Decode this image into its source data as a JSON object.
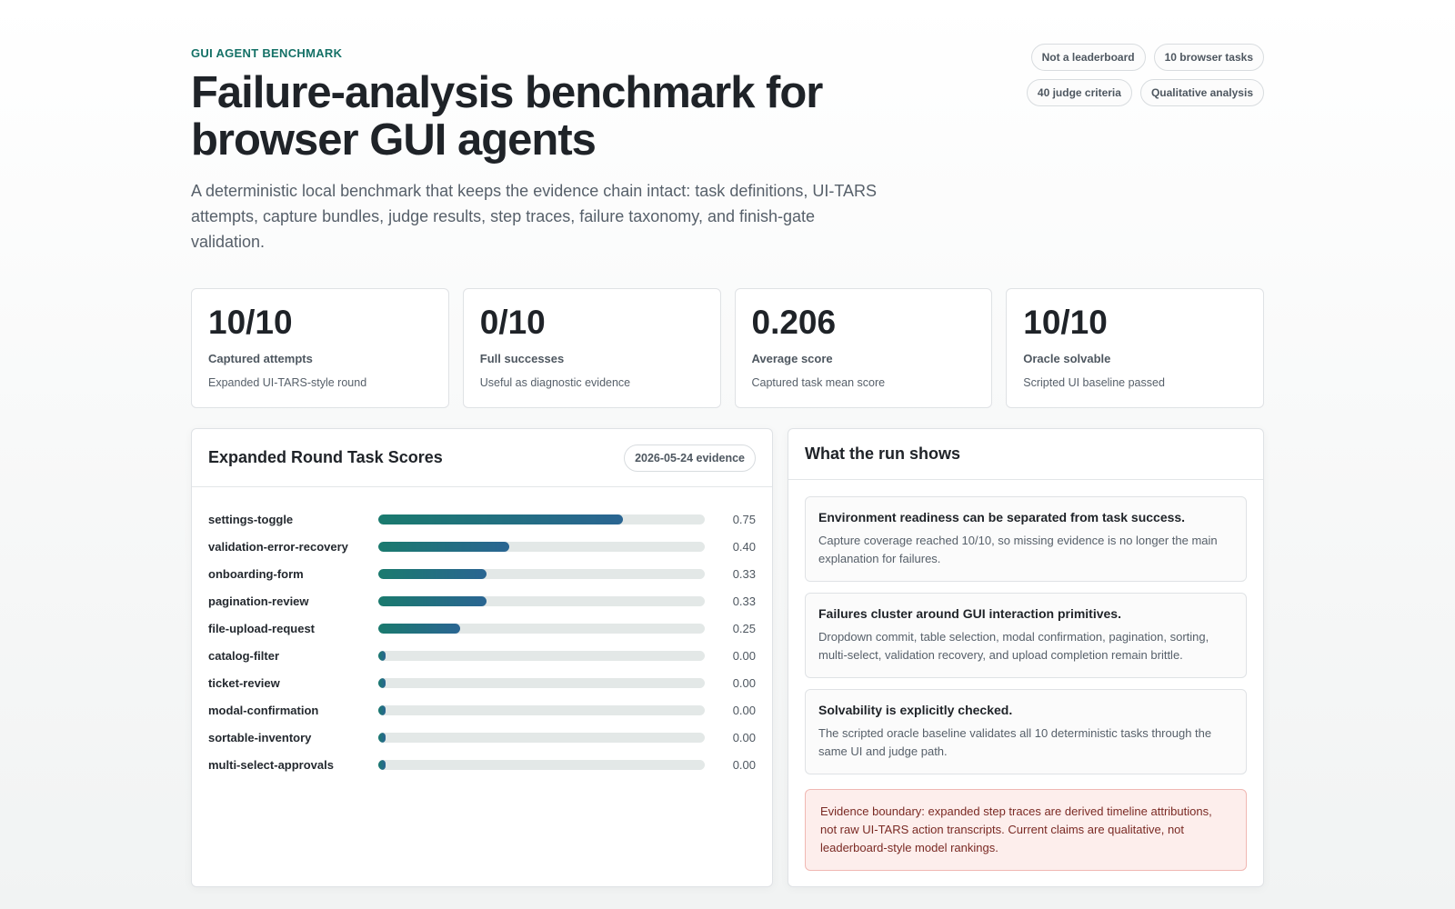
{
  "header": {
    "eyebrow": "GUI AGENT BENCHMARK",
    "title": "Failure-analysis benchmark for browser GUI agents",
    "subtitle": "A deterministic local benchmark that keeps the evidence chain intact: task definitions, UI-TARS attempts, capture bundles, judge results, step traces, failure taxonomy, and finish-gate validation.",
    "tags": [
      "Not a leaderboard",
      "10 browser tasks",
      "40 judge criteria",
      "Qualitative analysis"
    ]
  },
  "stats": [
    {
      "value": "10/10",
      "label": "Captured attempts",
      "desc": "Expanded UI-TARS-style round"
    },
    {
      "value": "0/10",
      "label": "Full successes",
      "desc": "Useful as diagnostic evidence"
    },
    {
      "value": "0.206",
      "label": "Average score",
      "desc": "Captured task mean score"
    },
    {
      "value": "10/10",
      "label": "Oracle solvable",
      "desc": "Scripted UI baseline passed"
    }
  ],
  "scores_panel": {
    "title": "Expanded Round Task Scores",
    "badge": "2026-05-24 evidence",
    "rows": [
      {
        "name": "settings-toggle",
        "value": 0.75,
        "label": "0.75"
      },
      {
        "name": "validation-error-recovery",
        "value": 0.4,
        "label": "0.40"
      },
      {
        "name": "onboarding-form",
        "value": 0.33,
        "label": "0.33"
      },
      {
        "name": "pagination-review",
        "value": 0.33,
        "label": "0.33"
      },
      {
        "name": "file-upload-request",
        "value": 0.25,
        "label": "0.25"
      },
      {
        "name": "catalog-filter",
        "value": 0.0,
        "label": "0.00"
      },
      {
        "name": "ticket-review",
        "value": 0.0,
        "label": "0.00"
      },
      {
        "name": "modal-confirmation",
        "value": 0.0,
        "label": "0.00"
      },
      {
        "name": "sortable-inventory",
        "value": 0.0,
        "label": "0.00"
      },
      {
        "name": "multi-select-approvals",
        "value": 0.0,
        "label": "0.00"
      }
    ]
  },
  "insights_panel": {
    "title": "What the run shows",
    "items": [
      {
        "title": "Environment readiness can be separated from task success.",
        "body": "Capture coverage reached 10/10, so missing evidence is no longer the main explanation for failures."
      },
      {
        "title": "Failures cluster around GUI interaction primitives.",
        "body": "Dropdown commit, table selection, modal confirmation, pagination, sorting, multi-select, validation recovery, and upload completion remain brittle."
      },
      {
        "title": "Solvability is explicitly checked.",
        "body": "The scripted oracle baseline validates all 10 deterministic tasks through the same UI and judge path."
      }
    ],
    "boundary": "Evidence boundary: expanded step traces are derived timeline attributions, not raw UI-TARS action transcripts. Current claims are qualitative, not leaderboard-style model rankings."
  },
  "colors": {
    "accent": "#157167",
    "bar_start": "#1a7a6e",
    "bar_end": "#2a6592",
    "warning_bg": "#fdeeec"
  }
}
